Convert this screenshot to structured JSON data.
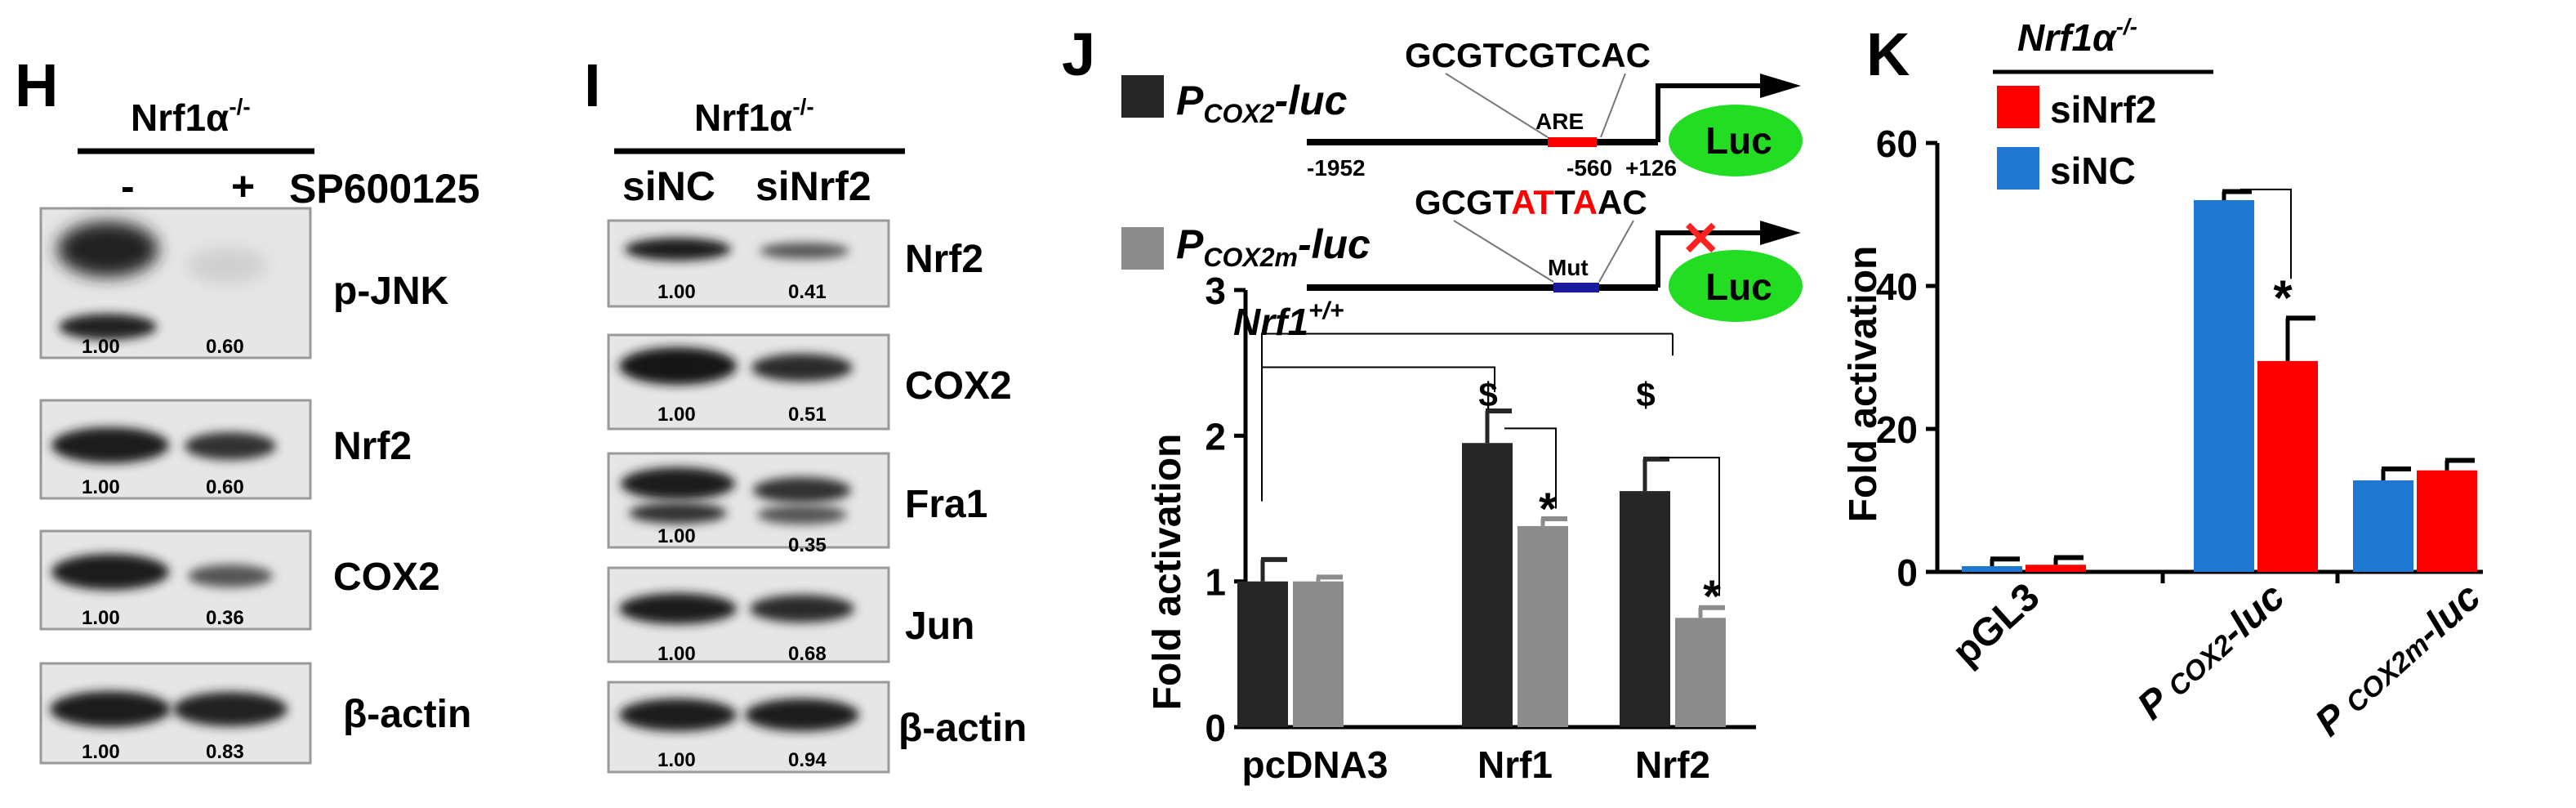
{
  "panel_H": {
    "letter": "H",
    "genotype": {
      "base": "Nrf1α",
      "sup": "-/-"
    },
    "treatment_minus": "-",
    "treatment_plus": "+",
    "treatment_label": "SP600125",
    "blots": [
      {
        "label": "p-JNK",
        "q1": "1.00",
        "q2": "0.60"
      },
      {
        "label": "Nrf2",
        "q1": "1.00",
        "q2": "0.60"
      },
      {
        "label": "COX2",
        "q1": "1.00",
        "q2": "0.36"
      },
      {
        "label": "β-actin",
        "q1": "1.00",
        "q2": "0.83"
      }
    ]
  },
  "panel_I": {
    "letter": "I",
    "genotype": {
      "base": "Nrf1α",
      "sup": "-/-"
    },
    "lane1": "siNC",
    "lane2": "siNrf2",
    "blots": [
      {
        "label": "Nrf2",
        "q1": "1.00",
        "q2": "0.41"
      },
      {
        "label": "COX2",
        "q1": "1.00",
        "q2": "0.51"
      },
      {
        "label": "Fra1",
        "q1": "1.00",
        "q2": "0.35"
      },
      {
        "label": "Jun",
        "q1": "1.00",
        "q2": "0.68"
      },
      {
        "label": "β-actin",
        "q1": "1.00",
        "q2": "0.94"
      }
    ]
  },
  "panel_J": {
    "letter": "J",
    "construct1": {
      "name_p": "P",
      "name_sub": "COX2",
      "name_suffix": "-luc",
      "sequence": "GCGTCGTCAC",
      "element": "ARE",
      "pos_start": "-1952",
      "pos_mid": "-560",
      "pos_end": "+126",
      "reporter": "Luc"
    },
    "construct2": {
      "name_p": "P",
      "name_sub": "COX2m",
      "name_suffix": "-luc",
      "seq_parts": [
        "GCGT",
        "AT",
        "T",
        "A",
        "AC"
      ],
      "element": "Mut",
      "reporter": "Luc",
      "x_mark": "✕"
    },
    "genotype": {
      "base": "Nrf1",
      "sup": "+/+"
    },
    "dollar": "$",
    "star": "*",
    "colors": {
      "dark": "#262626",
      "gray": "#8c8c8c",
      "are": "#ff0000",
      "mut": "#1a1aa0",
      "luc": "#22dd22",
      "mut_letter": "#ff0000"
    }
  },
  "panel_K": {
    "letter": "K",
    "genotype": {
      "base": "Nrf1α",
      "sup": "-/-"
    },
    "star": "*",
    "colors": {
      "siNC": "#1e77d0",
      "siNrf2": "#ff0000"
    }
  },
  "chart_data": [
    {
      "type": "bar",
      "panel": "J",
      "title": "",
      "xlabel": "",
      "ylabel": "Fold activation",
      "ylim": [
        0,
        3
      ],
      "yticks": [
        0,
        1,
        2,
        3
      ],
      "categories": [
        "pcDNA3",
        "Nrf1",
        "Nrf2"
      ],
      "series": [
        {
          "name": "P_COX2-luc",
          "values": [
            1.0,
            1.95,
            1.62
          ],
          "errors": [
            0.15,
            0.22,
            0.22
          ]
        },
        {
          "name": "P_COX2m-luc",
          "values": [
            1.0,
            1.38,
            0.75
          ],
          "errors": [
            0.03,
            0.05,
            0.07
          ]
        }
      ]
    },
    {
      "type": "bar",
      "panel": "K",
      "title": "",
      "xlabel": "",
      "ylabel": "Fold activation",
      "ylim": [
        0,
        60
      ],
      "yticks": [
        0,
        20,
        40,
        60
      ],
      "categories": [
        "pGL3",
        "P COX2-luc",
        "P COX2m-luc"
      ],
      "series": [
        {
          "name": "siNC",
          "values": [
            0.8,
            52,
            12.8
          ],
          "errors": [
            1.0,
            1.2,
            1.6
          ]
        },
        {
          "name": "siNrf2",
          "values": [
            1.0,
            29.5,
            14.2
          ],
          "errors": [
            1.0,
            6.0,
            1.4
          ]
        }
      ]
    }
  ]
}
